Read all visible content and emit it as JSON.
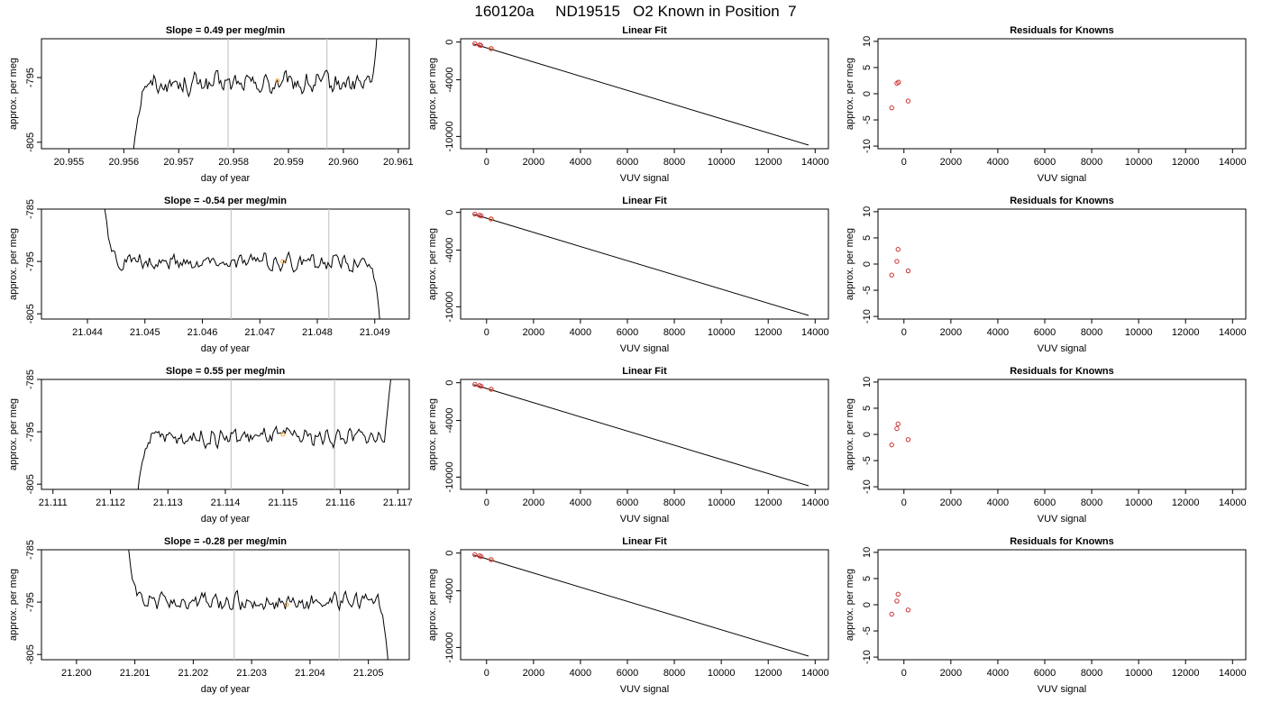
{
  "figure_title": "160120a     ND19515   O2 Known in Position  7",
  "colors": {
    "line": "#000000",
    "marker_known": "#cc3333",
    "marker_sample": "#f0a040",
    "vline": "#c8c8c8"
  },
  "chart_data": [
    {
      "type": "line",
      "row": 0,
      "col": 0,
      "title": "Slope =  0.49  per meg/min",
      "xlabel": "day of year",
      "ylabel": "approx. per meg",
      "xlim": [
        20.9545,
        20.9612
      ],
      "ylim": [
        -806.0,
        -789.0
      ],
      "xticks": [
        "20.955",
        "20.956",
        "20.957",
        "20.958",
        "20.959",
        "20.960",
        "20.961"
      ],
      "yticks": [
        "-795",
        "-805"
      ],
      "vlines": [
        20.9579,
        20.9597
      ],
      "start": 20.95615,
      "end": 20.96065,
      "level": -796.0,
      "amplitude": 1.1,
      "head": -808.5,
      "tail": -784.0,
      "sample_marker": {
        "x": 20.9588,
        "y": -795.5
      },
      "grid": false,
      "legend": "none"
    },
    {
      "type": "scatter",
      "row": 0,
      "col": 1,
      "title": "Linear Fit",
      "xlabel": "VUV signal",
      "ylabel": "approx. per meg",
      "xlim": [
        -1105,
        14565
      ],
      "ylim": [
        -11300,
        350
      ],
      "xticks": [
        "0",
        "2000",
        "4000",
        "6000",
        "8000",
        "10000",
        "12000",
        "14000"
      ],
      "yticks": [
        "0",
        "-4000",
        "-10000"
      ],
      "fit_line": {
        "x": [
          -550,
          13720
        ],
        "y": [
          -200,
          -10920
        ]
      },
      "points_known": [
        {
          "x": -500,
          "y": -180
        },
        {
          "x": -300,
          "y": -300
        },
        {
          "x": -250,
          "y": -360
        },
        {
          "x": 200,
          "y": -700
        }
      ],
      "points_sample": [
        {
          "x": 180,
          "y": -690
        }
      ],
      "grid": false,
      "legend": "none"
    },
    {
      "type": "scatter",
      "row": 0,
      "col": 2,
      "title": "Residuals for Knowns",
      "xlabel": "VUV signal",
      "ylabel": "approx. per meg",
      "xlim": [
        -1105,
        14565
      ],
      "ylim": [
        -10.5,
        10.5
      ],
      "xticks": [
        "0",
        "2000",
        "4000",
        "6000",
        "8000",
        "10000",
        "12000",
        "14000"
      ],
      "yticks": [
        "10",
        "5",
        "0",
        "-5",
        "-10"
      ],
      "points_known": [
        {
          "x": -520,
          "y": -2.7
        },
        {
          "x": -300,
          "y": 2.0
        },
        {
          "x": -230,
          "y": 2.2
        },
        {
          "x": 180,
          "y": -1.4
        }
      ],
      "grid": false,
      "legend": "none"
    },
    {
      "type": "line",
      "row": 1,
      "col": 0,
      "title": "Slope =  -0.54  per meg/min",
      "xlabel": "day of year",
      "ylabel": "approx. per meg",
      "xlim": [
        21.0432,
        21.0496
      ],
      "ylim": [
        -806.0,
        -785.0
      ],
      "xticks": [
        "21.044",
        "21.045",
        "21.046",
        "21.047",
        "21.048",
        "21.049"
      ],
      "yticks": [
        "-785",
        "-795",
        "-805"
      ],
      "vlines": [
        21.0465,
        21.0482
      ],
      "start": 21.04425,
      "end": 21.0491,
      "level": -795.2,
      "amplitude": 1.1,
      "head": -781.0,
      "tail": -808.0,
      "sample_marker": {
        "x": 21.0474,
        "y": -795.0
      },
      "grid": false,
      "legend": "none"
    },
    {
      "type": "scatter",
      "row": 1,
      "col": 1,
      "title": "Linear Fit",
      "xlabel": "VUV signal",
      "ylabel": "approx. per meg",
      "xlim": [
        -1105,
        14565
      ],
      "ylim": [
        -11300,
        350
      ],
      "xticks": [
        "0",
        "2000",
        "4000",
        "6000",
        "8000",
        "10000",
        "12000",
        "14000"
      ],
      "yticks": [
        "0",
        "-4000",
        "-10000"
      ],
      "fit_line": {
        "x": [
          -550,
          13720
        ],
        "y": [
          -200,
          -10920
        ]
      },
      "points_known": [
        {
          "x": -500,
          "y": -180
        },
        {
          "x": -300,
          "y": -300
        },
        {
          "x": -230,
          "y": -380
        },
        {
          "x": 200,
          "y": -700
        }
      ],
      "points_sample": [
        {
          "x": 180,
          "y": -690
        }
      ],
      "grid": false,
      "legend": "none"
    },
    {
      "type": "scatter",
      "row": 1,
      "col": 2,
      "title": "Residuals for Knowns",
      "xlabel": "VUV signal",
      "ylabel": "approx. per meg",
      "xlim": [
        -1105,
        14565
      ],
      "ylim": [
        -10.5,
        10.5
      ],
      "xticks": [
        "0",
        "2000",
        "4000",
        "6000",
        "8000",
        "10000",
        "12000",
        "14000"
      ],
      "yticks": [
        "10",
        "5",
        "0",
        "-5",
        "-10"
      ],
      "points_known": [
        {
          "x": -520,
          "y": -2.1
        },
        {
          "x": -300,
          "y": 0.5
        },
        {
          "x": -250,
          "y": 2.8
        },
        {
          "x": 180,
          "y": -1.3
        }
      ],
      "grid": false,
      "legend": "none"
    },
    {
      "type": "line",
      "row": 2,
      "col": 0,
      "title": "Slope =  0.55  per meg/min",
      "xlabel": "day of year",
      "ylabel": "approx. per meg",
      "xlim": [
        21.1108,
        21.1172
      ],
      "ylim": [
        -806.0,
        -785.0
      ],
      "xticks": [
        "21.111",
        "21.112",
        "21.113",
        "21.114",
        "21.115",
        "21.116",
        "21.117"
      ],
      "yticks": [
        "-785",
        "-795",
        "-805"
      ],
      "vlines": [
        21.1141,
        21.1159
      ],
      "start": 21.11245,
      "end": 21.1169,
      "level": -796.0,
      "amplitude": 1.1,
      "head": -809.0,
      "tail": -782.0,
      "sample_marker": {
        "x": 21.115,
        "y": -795.5
      },
      "grid": false,
      "legend": "none"
    },
    {
      "type": "scatter",
      "row": 2,
      "col": 1,
      "title": "Linear Fit",
      "xlabel": "VUV signal",
      "ylabel": "approx. per meg",
      "xlim": [
        -1105,
        14565
      ],
      "ylim": [
        -11300,
        350
      ],
      "xticks": [
        "0",
        "2000",
        "4000",
        "6000",
        "8000",
        "10000",
        "12000",
        "14000"
      ],
      "yticks": [
        "0",
        "-4000",
        "-10000"
      ],
      "fit_line": {
        "x": [
          -550,
          13720
        ],
        "y": [
          -200,
          -10920
        ]
      },
      "points_known": [
        {
          "x": -500,
          "y": -180
        },
        {
          "x": -300,
          "y": -300
        },
        {
          "x": -230,
          "y": -380
        },
        {
          "x": 200,
          "y": -700
        }
      ],
      "points_sample": [
        {
          "x": 180,
          "y": -690
        }
      ],
      "grid": false,
      "legend": "none"
    },
    {
      "type": "scatter",
      "row": 2,
      "col": 2,
      "title": "Residuals for Knowns",
      "xlabel": "VUV signal",
      "ylabel": "approx. per meg",
      "xlim": [
        -1105,
        14565
      ],
      "ylim": [
        -10.5,
        10.5
      ],
      "xticks": [
        "0",
        "2000",
        "4000",
        "6000",
        "8000",
        "10000",
        "12000",
        "14000"
      ],
      "yticks": [
        "10",
        "5",
        "0",
        "-5",
        "-10"
      ],
      "points_known": [
        {
          "x": -520,
          "y": -2.0
        },
        {
          "x": -300,
          "y": 1.1
        },
        {
          "x": -250,
          "y": 2.0
        },
        {
          "x": 180,
          "y": -1.0
        }
      ],
      "grid": false,
      "legend": "none"
    },
    {
      "type": "line",
      "row": 3,
      "col": 0,
      "title": "Slope =  -0.28  per meg/min",
      "xlabel": "day of year",
      "ylabel": "approx. per meg",
      "xlim": [
        21.1994,
        21.2057
      ],
      "ylim": [
        -806.0,
        -785.0
      ],
      "xticks": [
        "21.200",
        "21.201",
        "21.202",
        "21.203",
        "21.204",
        "21.205"
      ],
      "yticks": [
        "-785",
        "-795",
        "-805"
      ],
      "vlines": [
        21.2027,
        21.2045
      ],
      "start": 21.20085,
      "end": 21.20535,
      "level": -795.0,
      "amplitude": 1.1,
      "head": -781.0,
      "tail": -808.0,
      "sample_marker": {
        "x": 21.2036,
        "y": -795.5
      },
      "grid": false,
      "legend": "none"
    },
    {
      "type": "scatter",
      "row": 3,
      "col": 1,
      "title": "Linear Fit",
      "xlabel": "VUV signal",
      "ylabel": "approx. per meg",
      "xlim": [
        -1105,
        14565
      ],
      "ylim": [
        -11300,
        350
      ],
      "xticks": [
        "0",
        "2000",
        "4000",
        "6000",
        "8000",
        "10000",
        "12000",
        "14000"
      ],
      "yticks": [
        "0",
        "-4000",
        "-10000"
      ],
      "fit_line": {
        "x": [
          -550,
          13720
        ],
        "y": [
          -200,
          -10920
        ]
      },
      "points_known": [
        {
          "x": -500,
          "y": -180
        },
        {
          "x": -300,
          "y": -300
        },
        {
          "x": -230,
          "y": -380
        },
        {
          "x": 200,
          "y": -700
        }
      ],
      "points_sample": [
        {
          "x": 180,
          "y": -690
        }
      ],
      "grid": false,
      "legend": "none"
    },
    {
      "type": "scatter",
      "row": 3,
      "col": 2,
      "title": "Residuals for Knowns",
      "xlabel": "VUV signal",
      "ylabel": "approx. per meg",
      "xlim": [
        -1105,
        14565
      ],
      "ylim": [
        -10.5,
        10.5
      ],
      "xticks": [
        "0",
        "2000",
        "4000",
        "6000",
        "8000",
        "10000",
        "12000",
        "14000"
      ],
      "yticks": [
        "10",
        "5",
        "0",
        "-5",
        "-10"
      ],
      "points_known": [
        {
          "x": -520,
          "y": -1.8
        },
        {
          "x": -300,
          "y": 0.7
        },
        {
          "x": -250,
          "y": 2.0
        },
        {
          "x": 180,
          "y": -1.0
        }
      ],
      "grid": false,
      "legend": "none"
    }
  ]
}
